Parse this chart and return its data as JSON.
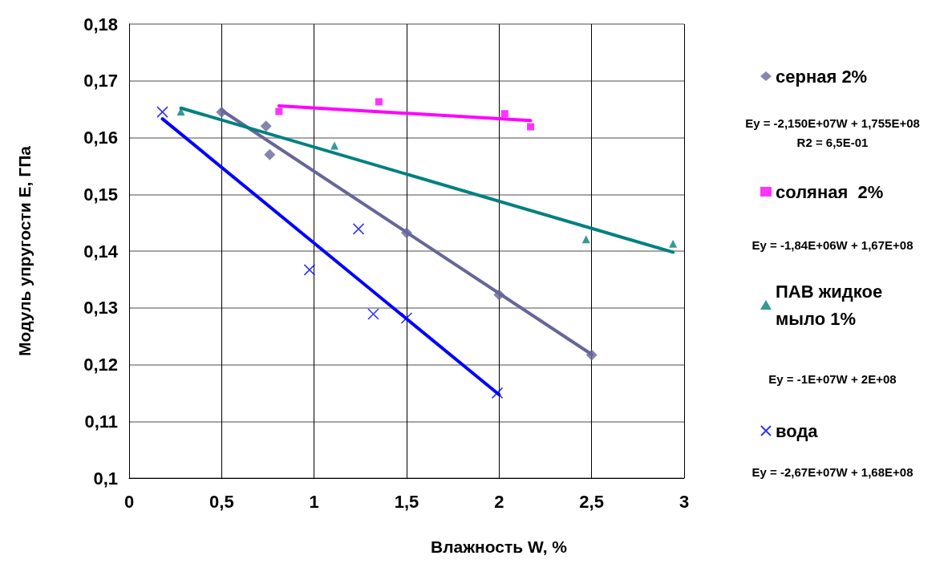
{
  "chart_data": {
    "type": "scatter",
    "xlabel": "Влажность W, %",
    "ylabel": "Модуль упругости E, ГПа",
    "xlim": [
      0,
      3
    ],
    "xticks": [
      0,
      {
        "value": 0.5,
        "label": "0,5"
      },
      1,
      {
        "value": 1.5,
        "label": "1,5"
      },
      2,
      {
        "value": 2.5,
        "label": "2,5"
      },
      3
    ],
    "ylim": [
      0.1,
      0.18
    ],
    "yticks": [
      {
        "value": 0.1,
        "label": "0,1"
      },
      {
        "value": 0.11,
        "label": "0,11"
      },
      {
        "value": 0.12,
        "label": "0,12"
      },
      {
        "value": 0.13,
        "label": "0,13"
      },
      {
        "value": 0.14,
        "label": "0,14"
      },
      {
        "value": 0.15,
        "label": "0,15"
      },
      {
        "value": 0.16,
        "label": "0,16"
      },
      {
        "value": 0.17,
        "label": "0,17"
      },
      {
        "value": 0.18,
        "label": "0,18"
      }
    ],
    "grid": true,
    "legend": "right",
    "series": [
      {
        "name": "серная 2%",
        "color": "#666699",
        "marker": "diamond",
        "x": [
          0.5,
          0.74,
          0.76,
          1.5,
          2,
          2.5
        ],
        "values": [
          0.1645,
          0.162,
          0.157,
          0.1432,
          0.1323,
          0.1217
        ]
      },
      {
        "name": "соляная  2%",
        "color": "#ff00ff",
        "marker": "square",
        "x": [
          0.81,
          1.35,
          2.03,
          2.17
        ],
        "values": [
          0.1646,
          0.1663,
          0.1642,
          0.1619
        ]
      },
      {
        "name": "ПАВ жидкое мыло 1%",
        "color": "#008080",
        "marker": "triangle",
        "x": [
          0.28,
          1.11,
          2.47,
          2.94
        ],
        "values": [
          0.1646,
          0.1586,
          0.1421,
          0.1413
        ]
      },
      {
        "name": "вода",
        "color": "#0000ff",
        "marker": "cross",
        "x": [
          0.18,
          0.975,
          1.24,
          1.32,
          1.5,
          1.99
        ],
        "values": [
          0.1645,
          0.1367,
          0.1439,
          0.1289,
          0.1282,
          0.115
        ]
      },
      {
        "type": "line",
        "color": "#666699",
        "marker": "none",
        "x": [
          0.5,
          2.5
        ],
        "values": [
          0.1648,
          0.1218
        ]
      },
      {
        "type": "line",
        "color": "#ff00ff",
        "marker": "none",
        "x": [
          0.81,
          2.17
        ],
        "values": [
          0.1656,
          0.163
        ]
      },
      {
        "type": "line",
        "color": "#008080",
        "marker": "none",
        "x": [
          0.28,
          2.94
        ],
        "values": [
          0.1652,
          0.1398
        ]
      },
      {
        "type": "line",
        "color": "#0000ff",
        "marker": "none",
        "x": [
          0.18,
          2
        ],
        "values": [
          0.1633,
          0.1147
        ]
      }
    ],
    "annotations": [
      "Ey = -2,150E+07W + 1,755E+08",
      "R2 = 6,5E-01",
      "Ey = -1,84E+06W + 1,67E+08",
      "Ey = -1E+07W + 2E+08",
      "Ey = -2,67E+07W + 1,68E+08"
    ]
  }
}
